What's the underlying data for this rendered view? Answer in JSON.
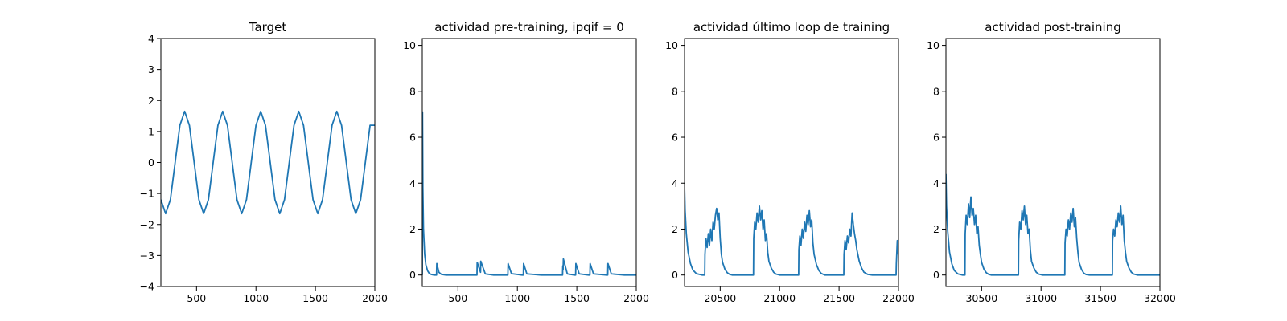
{
  "chart_data": [
    {
      "type": "line",
      "title": "Target",
      "xlabel": "",
      "ylabel": "",
      "xlim": [
        200,
        2000
      ],
      "ylim": [
        -4,
        4
      ],
      "xticks": [
        500,
        1000,
        1500,
        2000
      ],
      "yticks": [
        -4,
        -3,
        -2,
        -1,
        0,
        1,
        2,
        3,
        4
      ],
      "grid": false,
      "color": "#1f77b4",
      "x": [
        200,
        240,
        280,
        320,
        360,
        400,
        440,
        480,
        520,
        560,
        600,
        640,
        680,
        720,
        760,
        800,
        840,
        880,
        920,
        960,
        1000,
        1040,
        1080,
        1120,
        1160,
        1200,
        1240,
        1280,
        1320,
        1360,
        1400,
        1440,
        1480,
        1520,
        1560,
        1600,
        1640,
        1680,
        1720,
        1760,
        1800,
        1840,
        1880,
        1920,
        1960,
        2000
      ],
      "y": [
        -1.2,
        -1.65,
        -1.2,
        0.0,
        1.2,
        1.65,
        1.2,
        0.0,
        -1.2,
        -1.65,
        -1.2,
        0.0,
        1.2,
        1.65,
        1.2,
        0.0,
        -1.2,
        -1.65,
        -1.2,
        0.0,
        1.2,
        1.65,
        1.2,
        0.0,
        -1.2,
        -1.65,
        -1.2,
        0.0,
        1.2,
        1.65,
        1.2,
        0.0,
        -1.2,
        -1.65,
        -1.2,
        0.0,
        1.2,
        1.65,
        1.2,
        0.0,
        -1.2,
        -1.65,
        -1.2,
        0.0,
        1.2,
        1.2
      ]
    },
    {
      "type": "line",
      "title": "actividad pre-training, ipqif = 0",
      "xlabel": "",
      "ylabel": "",
      "xlim": [
        200,
        2000
      ],
      "ylim": [
        -0.5,
        10.3
      ],
      "xticks": [
        500,
        1000,
        1500,
        2000
      ],
      "yticks": [
        0,
        2,
        4,
        6,
        8,
        10
      ],
      "grid": false,
      "color": "#1f77b4",
      "x": [
        200,
        202,
        205,
        210,
        220,
        230,
        245,
        260,
        280,
        300,
        320,
        322,
        340,
        360,
        400,
        500,
        640,
        660,
        662,
        690,
        692,
        730,
        800,
        910,
        920,
        922,
        950,
        1040,
        1050,
        1052,
        1080,
        1200,
        1360,
        1380,
        1382,
        1385,
        1387,
        1420,
        1480,
        1490,
        1492,
        1520,
        1600,
        1610,
        1612,
        1640,
        1750,
        1760,
        1762,
        1790,
        1900,
        2000
      ],
      "y": [
        0,
        7.1,
        3.8,
        2.0,
        0.9,
        0.45,
        0.18,
        0.06,
        0.02,
        0.0,
        0.0,
        0.5,
        0.12,
        0.03,
        0.0,
        0.0,
        0.0,
        0.0,
        0.55,
        0.12,
        0.6,
        0.05,
        0.0,
        0.0,
        0.0,
        0.5,
        0.06,
        0.0,
        0.0,
        0.5,
        0.05,
        0.0,
        0.0,
        0.0,
        0.4,
        0.25,
        0.7,
        0.05,
        0.0,
        0.0,
        0.5,
        0.05,
        0.0,
        0.0,
        0.5,
        0.05,
        0.0,
        0.0,
        0.5,
        0.05,
        0.0,
        0.0
      ]
    },
    {
      "type": "line",
      "title": "actividad último loop de training",
      "xlabel": "",
      "ylabel": "",
      "xlim": [
        20200,
        22000
      ],
      "ylim": [
        -0.5,
        10.3
      ],
      "xticks": [
        20500,
        21000,
        21500,
        22000
      ],
      "yticks": [
        0,
        2,
        4,
        6,
        8,
        10
      ],
      "grid": false,
      "color": "#1f77b4",
      "x": [
        20200,
        20205,
        20215,
        20230,
        20250,
        20270,
        20300,
        20350,
        20370,
        20372,
        20380,
        20390,
        20400,
        20410,
        20420,
        20430,
        20440,
        20450,
        20460,
        20470,
        20480,
        20490,
        20500,
        20510,
        20520,
        20540,
        20560,
        20580,
        20600,
        20640,
        20700,
        20760,
        20780,
        20782,
        20790,
        20800,
        20810,
        20820,
        20830,
        20840,
        20850,
        20860,
        20870,
        20880,
        20890,
        20900,
        20910,
        20930,
        20950,
        20970,
        21000,
        21050,
        21100,
        21150,
        21160,
        21162,
        21170,
        21180,
        21190,
        21200,
        21210,
        21220,
        21230,
        21240,
        21250,
        21260,
        21270,
        21280,
        21290,
        21310,
        21330,
        21350,
        21380,
        21420,
        21480,
        21520,
        21540,
        21542,
        21550,
        21560,
        21570,
        21580,
        21590,
        21600,
        21610,
        21620,
        21630,
        21640,
        21650,
        21670,
        21690,
        21710,
        21740,
        21780,
        21830,
        21880,
        21920,
        21960,
        21980,
        21982,
        21990,
        22000
      ],
      "y": [
        3.9,
        2.8,
        1.8,
        1.0,
        0.5,
        0.22,
        0.06,
        0.0,
        0.0,
        0.9,
        1.6,
        1.2,
        1.8,
        1.3,
        2.0,
        1.5,
        2.3,
        2.0,
        2.6,
        2.9,
        2.4,
        2.7,
        1.6,
        0.9,
        0.55,
        0.25,
        0.1,
        0.03,
        0.0,
        0.0,
        0.0,
        0.0,
        0.0,
        1.6,
        2.3,
        2.0,
        2.7,
        2.3,
        3.0,
        2.4,
        2.8,
        2.0,
        2.4,
        1.5,
        1.8,
        1.0,
        0.6,
        0.3,
        0.12,
        0.04,
        0.0,
        0.0,
        0.0,
        0.0,
        0.0,
        1.1,
        1.7,
        1.3,
        2.0,
        1.6,
        2.3,
        1.9,
        2.6,
        2.2,
        2.8,
        2.1,
        2.4,
        1.4,
        0.9,
        0.45,
        0.2,
        0.07,
        0.0,
        0.0,
        0.0,
        0.0,
        0.0,
        0.9,
        1.5,
        1.1,
        1.7,
        1.4,
        2.0,
        1.7,
        2.7,
        2.2,
        1.8,
        1.5,
        1.1,
        0.6,
        0.3,
        0.12,
        0.03,
        0.0,
        0.0,
        0.0,
        0.0,
        0.0,
        0.0,
        0.5,
        1.5,
        0.8
      ]
    },
    {
      "type": "line",
      "title": "actividad post-training",
      "xlabel": "",
      "ylabel": "",
      "xlim": [
        30200,
        32000
      ],
      "ylim": [
        -0.5,
        10.3
      ],
      "xticks": [
        30500,
        31000,
        31500,
        32000
      ],
      "yticks": [
        0,
        2,
        4,
        6,
        8,
        10
      ],
      "grid": false,
      "color": "#1f77b4",
      "x": [
        30200,
        30205,
        30215,
        30230,
        30250,
        30270,
        30300,
        30340,
        30360,
        30362,
        30370,
        30380,
        30390,
        30400,
        30410,
        30420,
        30430,
        30440,
        30450,
        30460,
        30470,
        30480,
        30490,
        30500,
        30520,
        30540,
        30560,
        30580,
        30620,
        30680,
        30740,
        30800,
        30810,
        30812,
        30820,
        30830,
        30840,
        30850,
        30860,
        30870,
        30880,
        30890,
        30900,
        30910,
        30920,
        30940,
        30960,
        30980,
        31010,
        31060,
        31120,
        31180,
        31200,
        31202,
        31210,
        31220,
        31230,
        31240,
        31250,
        31260,
        31270,
        31280,
        31290,
        31300,
        31310,
        31320,
        31340,
        31360,
        31380,
        31410,
        31460,
        31520,
        31590,
        31600,
        31602,
        31610,
        31620,
        31630,
        31640,
        31650,
        31660,
        31670,
        31680,
        31690,
        31700,
        31710,
        31720,
        31740,
        31760,
        31780,
        31810,
        31860,
        31920,
        32000
      ],
      "y": [
        4.4,
        3.0,
        1.9,
        1.0,
        0.48,
        0.2,
        0.05,
        0.0,
        0.0,
        1.8,
        2.6,
        2.2,
        3.1,
        2.5,
        3.4,
        2.6,
        2.9,
        2.2,
        2.6,
        1.8,
        2.1,
        1.3,
        0.9,
        0.55,
        0.25,
        0.1,
        0.03,
        0.0,
        0.0,
        0.0,
        0.0,
        0.0,
        0.0,
        1.5,
        2.3,
        2.0,
        2.8,
        2.4,
        3.0,
        2.2,
        2.6,
        1.8,
        2.0,
        1.1,
        0.6,
        0.3,
        0.12,
        0.04,
        0.0,
        0.0,
        0.0,
        0.0,
        0.0,
        1.4,
        2.0,
        1.7,
        2.4,
        2.0,
        2.7,
        2.3,
        2.9,
        2.1,
        2.5,
        1.6,
        1.0,
        0.55,
        0.25,
        0.08,
        0.02,
        0.0,
        0.0,
        0.0,
        0.0,
        0.0,
        1.5,
        2.0,
        1.7,
        2.4,
        2.1,
        2.7,
        2.3,
        3.0,
        2.2,
        2.6,
        1.5,
        1.0,
        0.6,
        0.3,
        0.12,
        0.04,
        0.0,
        0.0,
        0.0,
        0.0
      ]
    }
  ]
}
